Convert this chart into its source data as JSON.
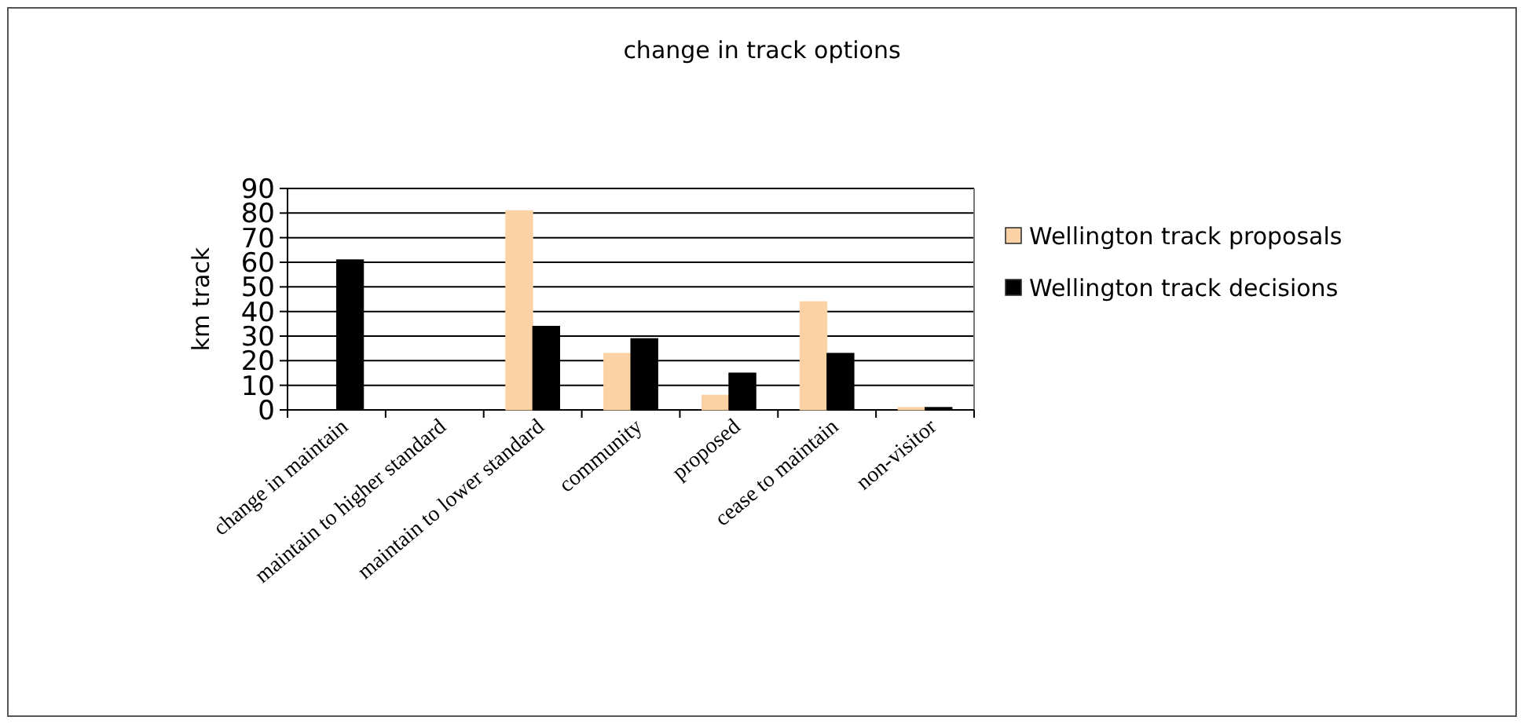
{
  "chart_data": {
    "type": "bar",
    "title": "change in track options",
    "ylabel": "km track",
    "categories": [
      "change in maintain",
      "maintain to higher standard",
      "maintain to lower standard",
      "community",
      "proposed",
      "cease to maintain",
      "non-visitor"
    ],
    "series": [
      {
        "name": "Wellington track proposals",
        "color": "#fad2a4",
        "values": [
          0,
          0,
          81,
          23,
          6,
          44,
          1
        ]
      },
      {
        "name": "Wellington track decisions",
        "color": "#000000",
        "values": [
          61,
          0,
          34,
          29,
          15,
          23,
          1
        ]
      }
    ],
    "ylim": [
      0,
      90
    ],
    "yticks": [
      0,
      10,
      20,
      30,
      40,
      50,
      60,
      70,
      80,
      90
    ],
    "grid": "y",
    "legend": "right"
  }
}
